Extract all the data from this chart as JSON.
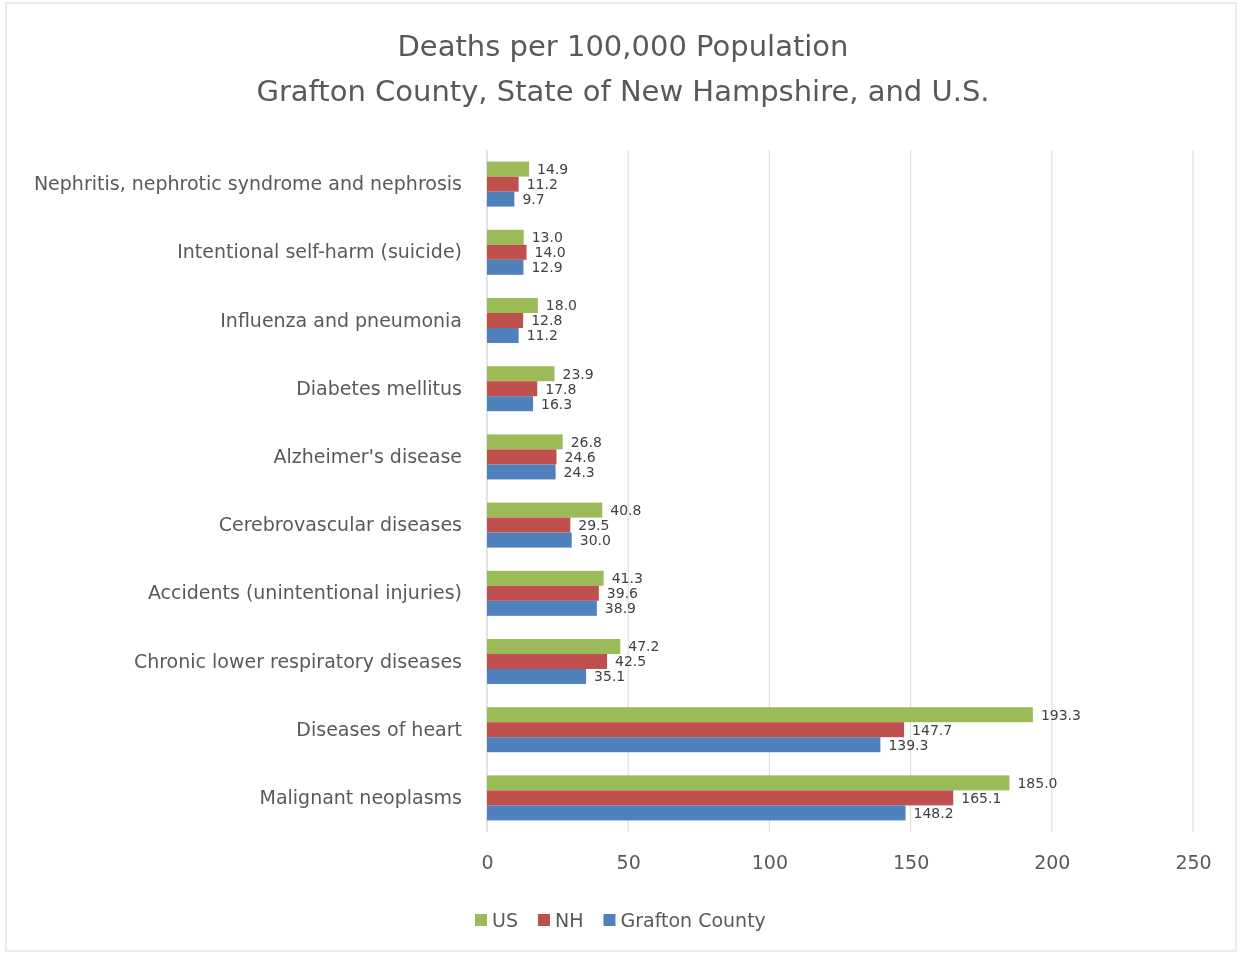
{
  "chart_data": {
    "type": "bar",
    "orientation": "horizontal",
    "title": "Deaths per 100,000 Population\nGrafton County, State of New Hampshire, and U.S.",
    "categories": [
      "Nephritis, nephrotic syndrome and nephrosis",
      "Intentional self-harm (suicide)",
      "Influenza and pneumonia",
      "Diabetes mellitus",
      "Alzheimer's disease",
      "Cerebrovascular diseases",
      "Accidents (unintentional injuries)",
      "Chronic lower respiratory diseases",
      "Diseases of heart",
      "Malignant neoplasms"
    ],
    "series": [
      {
        "name": "US",
        "color": "#9bbb59",
        "values": [
          14.9,
          13.0,
          18.0,
          23.9,
          26.8,
          40.8,
          41.3,
          47.2,
          193.3,
          185.0
        ],
        "value_labels": [
          "14.9",
          "13.0",
          "18.0",
          "23.9",
          "26.8",
          "40.8",
          "41.3",
          "47.2",
          "193.3",
          "185.0"
        ]
      },
      {
        "name": "NH",
        "color": "#c0504d",
        "values": [
          11.2,
          14.0,
          12.8,
          17.8,
          24.6,
          29.5,
          39.6,
          42.5,
          147.7,
          165.1
        ],
        "value_labels": [
          "11.2",
          "14.0",
          "12.8",
          "17.8",
          "24.6",
          "29.5",
          "39.6",
          "42.5",
          "147.7",
          "165.1"
        ]
      },
      {
        "name": "Grafton County",
        "color": "#4f81bd",
        "values": [
          9.7,
          12.9,
          11.2,
          16.3,
          24.3,
          30.0,
          38.9,
          35.1,
          139.3,
          148.2
        ],
        "value_labels": [
          "9.7",
          "12.9",
          "11.2",
          "16.3",
          "24.3",
          "30.0",
          "38.9",
          "35.1",
          "139.3",
          "148.2"
        ]
      }
    ],
    "xlim": [
      0,
      250
    ],
    "xticks": [
      0,
      50,
      100,
      150,
      200,
      250
    ],
    "grid": "x",
    "legend": "bottom"
  }
}
